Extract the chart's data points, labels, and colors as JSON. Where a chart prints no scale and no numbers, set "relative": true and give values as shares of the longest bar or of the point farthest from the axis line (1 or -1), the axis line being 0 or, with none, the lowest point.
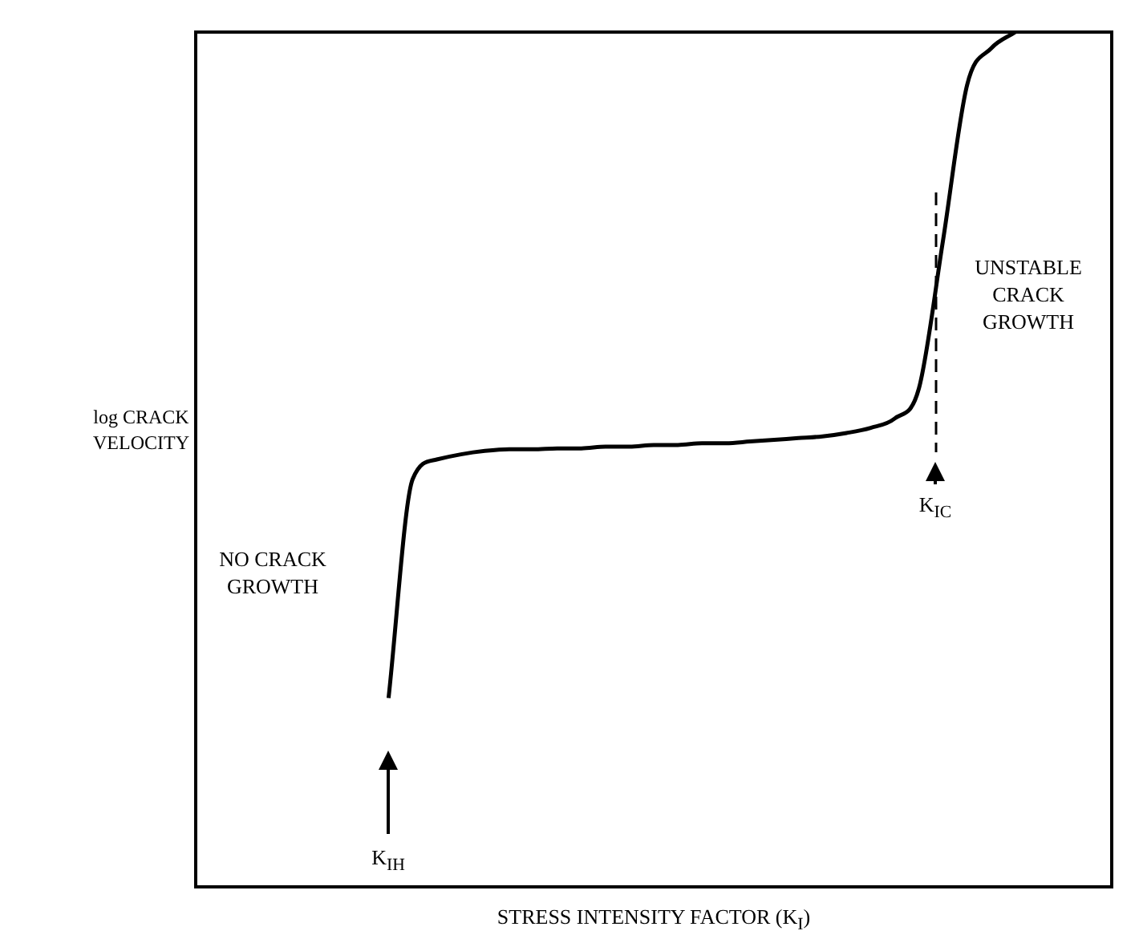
{
  "chart_data": {
    "type": "line",
    "relative": true,
    "xlabel": "STRESS INTENSITY FACTOR (K$_{I}$)",
    "ylabel": "log CRACK VELOCITY",
    "categories": [
      null,
      null,
      null,
      null,
      null,
      null,
      null,
      null,
      null,
      null,
      null,
      null,
      null,
      null,
      null,
      null,
      null,
      null,
      null,
      null,
      null,
      null,
      null,
      null,
      null,
      null,
      null,
      null,
      null,
      null,
      null,
      null,
      null,
      null,
      null,
      null,
      null,
      null,
      null
    ],
    "series": [
      {
        "color": "#000000",
        "values": [
          null,
          null,
          null,
          null,
          null,
          null,
          null,
          null,
          0.221,
          0.477,
          0.5,
          0.506,
          0.51,
          0.512,
          0.512,
          0.513,
          0.513,
          0.515,
          0.515,
          0.517,
          0.517,
          0.519,
          0.519,
          0.521,
          0.523,
          0.525,
          0.527,
          0.531,
          0.537,
          0.548,
          0.583,
          0.756,
          0.938,
          0.981,
          1,
          null,
          null,
          null,
          null
        ]
      }
    ],
    "annotations": [
      "NO CRACK GROWTH",
      "UNSTABLE CRACK GROWTH",
      "K$_{IH}$",
      "K$_{IC}$"
    ],
    "legend": false,
    "marker": "none",
    "line_style": "solid"
  }
}
